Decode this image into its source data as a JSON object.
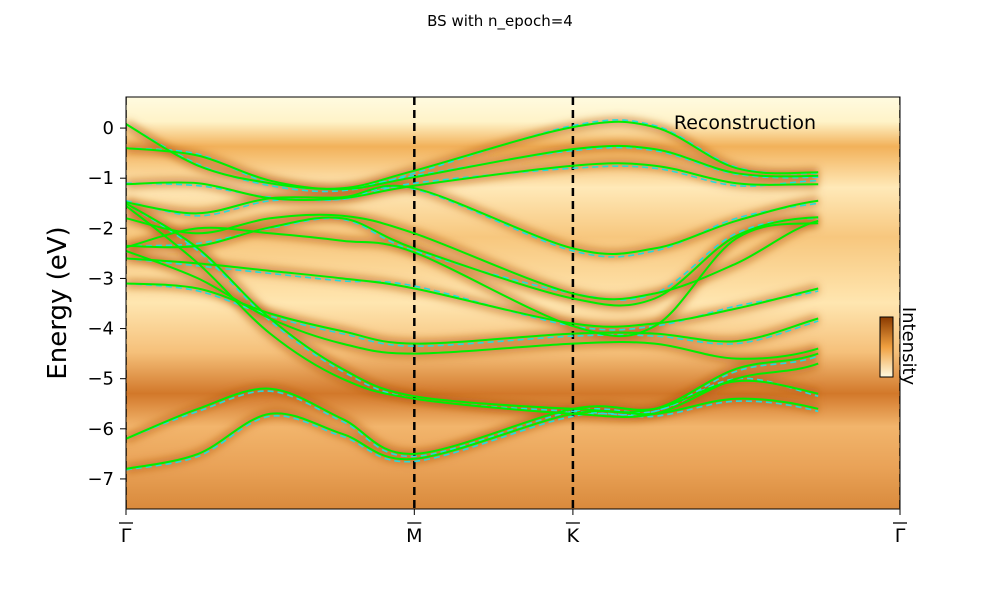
{
  "title": "BS with n_epoch=4",
  "chart_data": {
    "type": "line",
    "title": "BS with n_epoch=4",
    "xlabel": "",
    "ylabel": "Energy (eV)",
    "ylim": [
      -7.6,
      0.62
    ],
    "yticks": [
      0,
      -1,
      -2,
      -3,
      -4,
      -5,
      -6,
      -7
    ],
    "ytick_labels": [
      "0",
      "−1",
      "−2",
      "−3",
      "−4",
      "−5",
      "−6",
      "−7"
    ],
    "x_range": [
      0,
      1
    ],
    "kpoints": [
      {
        "label": "Γ",
        "x": 0.0
      },
      {
        "label": "M",
        "x": 0.3725
      },
      {
        "label": "K",
        "x": 0.5774
      },
      {
        "label": "Γ",
        "x": 1.0
      }
    ],
    "annotation": "Reconstruction",
    "colorbar_label": "Intensity",
    "colors": {
      "reconstruction": "#00ee00",
      "reference": "#22dddd",
      "intensity_low": "#fffbe0",
      "intensity_high": "#8a3a00",
      "divider": "#000000"
    },
    "series": [
      {
        "style": "solid",
        "bands": [
          [
            0.08,
            -0.75,
            -1.1,
            -1.2,
            -0.85,
            0.02,
            0.02,
            -0.8,
            -0.88,
            -0.7,
            -0.35,
            0.07
          ],
          [
            -0.4,
            -0.55,
            -1.05,
            -1.22,
            -0.98,
            -0.42,
            -0.42,
            -0.9,
            -0.95,
            -0.8,
            -0.55,
            -0.4
          ],
          [
            -1.12,
            -1.1,
            -1.4,
            -1.4,
            -1.15,
            -0.75,
            -0.75,
            -1.1,
            -1.12,
            -1.12,
            -1.12,
            -1.12
          ],
          [
            -1.48,
            -1.7,
            -1.4,
            -1.38,
            -1.2,
            -2.4,
            -2.4,
            -1.85,
            -1.45,
            -1.4,
            -1.3,
            -1.48
          ],
          [
            -1.8,
            -2.1,
            -1.8,
            -1.75,
            -2.1,
            -3.3,
            -3.3,
            -2.7,
            -1.85,
            -1.85,
            -1.8,
            -1.8
          ],
          [
            -2.35,
            -2.35,
            -1.98,
            -1.8,
            -2.4,
            -3.4,
            -3.4,
            -2.15,
            -1.78,
            -2.0,
            -2.2,
            -2.35
          ],
          [
            -2.38,
            -2.0,
            -2.1,
            -2.25,
            -2.48,
            -3.95,
            -3.95,
            -2.2,
            -1.9,
            -2.1,
            -2.3,
            -2.38
          ],
          [
            -2.6,
            -2.7,
            -2.85,
            -3.0,
            -3.2,
            -3.9,
            -3.9,
            -3.6,
            -3.2,
            -2.8,
            -2.55,
            -2.6
          ],
          [
            -3.1,
            -3.2,
            -3.7,
            -4.05,
            -4.3,
            -4.1,
            -4.1,
            -4.25,
            -3.8,
            -3.3,
            -3.1,
            -3.1
          ],
          [
            -2.45,
            -3.0,
            -3.8,
            -4.3,
            -4.5,
            -4.3,
            -4.3,
            -4.6,
            -4.4,
            -3.6,
            -3.05,
            -2.45
          ],
          [
            -1.5,
            -2.4,
            -3.8,
            -4.8,
            -5.35,
            -5.6,
            -5.6,
            -4.8,
            -4.5,
            -3.6,
            -2.7,
            -1.5
          ],
          [
            -1.55,
            -2.7,
            -4.1,
            -5.0,
            -5.4,
            -5.7,
            -5.7,
            -5.0,
            -4.7,
            -3.8,
            -2.9,
            -1.55
          ],
          [
            -6.2,
            -5.6,
            -5.2,
            -5.8,
            -6.5,
            -5.6,
            -5.6,
            -5.05,
            -5.3,
            -5.8,
            -6.2,
            -6.2
          ],
          [
            -6.8,
            -6.5,
            -5.7,
            -6.1,
            -6.6,
            -5.7,
            -5.7,
            -5.4,
            -5.6,
            -6.2,
            -6.6,
            -6.8
          ]
        ]
      },
      {
        "style": "dashed",
        "bands": [
          [
            0.08,
            -0.72,
            -1.15,
            -1.25,
            -0.9,
            0.05,
            0.05,
            -0.78,
            -0.9,
            -0.72,
            -0.38,
            0.07
          ],
          [
            -0.4,
            -0.52,
            -1.1,
            -1.2,
            -0.95,
            -0.45,
            -0.45,
            -0.92,
            -0.98,
            -0.82,
            -0.55,
            -0.4
          ],
          [
            -1.1,
            -1.15,
            -1.38,
            -1.42,
            -1.1,
            -0.8,
            -0.8,
            -1.15,
            -1.05,
            -1.1,
            -1.15,
            -1.12
          ],
          [
            -1.45,
            -1.75,
            -1.45,
            -1.42,
            -1.22,
            -2.45,
            -2.45,
            -1.8,
            -1.5,
            -1.35,
            -1.3,
            -1.48
          ],
          [
            -2.35,
            -2.3,
            -2.0,
            -1.82,
            -2.45,
            -3.3,
            -3.3,
            -2.1,
            -1.8,
            -2.05,
            -2.25,
            -2.35
          ],
          [
            -2.6,
            -2.75,
            -2.9,
            -3.05,
            -3.15,
            -3.95,
            -3.95,
            -3.55,
            -3.25,
            -2.8,
            -2.55,
            -2.6
          ],
          [
            -3.1,
            -3.25,
            -3.75,
            -4.1,
            -4.35,
            -4.15,
            -4.15,
            -4.3,
            -3.85,
            -3.3,
            -3.1,
            -3.1
          ],
          [
            -1.5,
            -2.45,
            -3.85,
            -4.85,
            -5.4,
            -5.65,
            -5.65,
            -4.85,
            -4.55,
            -3.65,
            -2.75,
            -1.5
          ],
          [
            -6.2,
            -5.65,
            -5.25,
            -5.85,
            -6.55,
            -5.65,
            -5.65,
            -5.0,
            -5.35,
            -5.85,
            -6.25,
            -6.2
          ],
          [
            -6.82,
            -6.55,
            -5.75,
            -6.15,
            -6.65,
            -5.75,
            -5.75,
            -5.45,
            -5.65,
            -6.25,
            -6.65,
            -6.82
          ]
        ]
      }
    ]
  }
}
